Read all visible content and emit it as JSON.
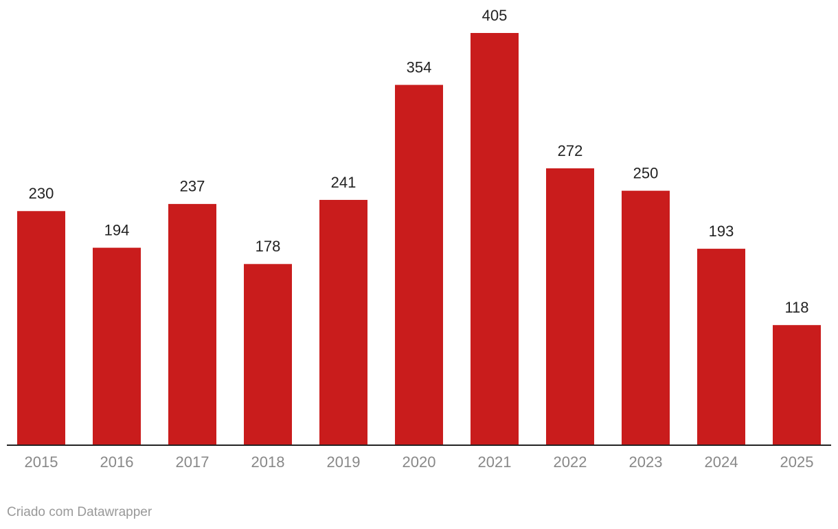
{
  "chart_data": {
    "type": "bar",
    "categories": [
      "2015",
      "2016",
      "2017",
      "2018",
      "2019",
      "2020",
      "2021",
      "2022",
      "2023",
      "2024",
      "2025"
    ],
    "values": [
      230,
      194,
      237,
      178,
      241,
      354,
      405,
      272,
      250,
      193,
      118
    ],
    "color": "#c91c1c",
    "footer": "Criado com Datawrapper"
  }
}
